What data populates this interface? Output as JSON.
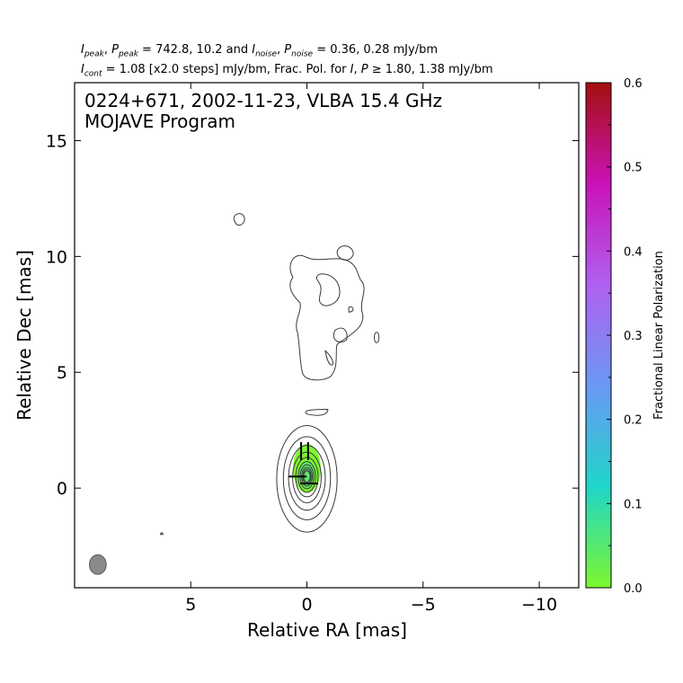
{
  "header": {
    "line1": {
      "i_peak_sym": "I",
      "i_peak_sub": "peak",
      "p_peak_sym": "P",
      "p_peak_sub": "peak",
      "peak_values": " = 742.8, 10.2 and ",
      "i_noise_sym": "I",
      "i_noise_sub": "noise",
      "p_noise_sym": "P",
      "p_noise_sub": "noise",
      "noise_values": " = 0.36, 0.28 mJy/bm"
    },
    "line2": {
      "i_cont_sym": "I",
      "i_cont_sub": "cont",
      "cont_text": " = 1.08 [x2.0 steps] mJy/bm, Frac. Pol. for ",
      "i_sym": "I",
      "p_sym": "P",
      "frac_text": " ≥ 1.80, 1.38 mJy/bm"
    }
  },
  "chart_data": {
    "type": "contour",
    "title_line1": "0224+671, 2002-11-23, VLBA 15.4 GHz",
    "title_line2": "MOJAVE Program",
    "xlabel": "Relative RA [mas]",
    "ylabel": "Relative Dec [mas]",
    "xlim": [
      10,
      -11.7
    ],
    "ylim": [
      -4.3,
      17.5
    ],
    "x_ticks": [
      5,
      0,
      -5,
      -10
    ],
    "x_tick_labels": [
      "5",
      "0",
      "−5",
      "−10"
    ],
    "y_ticks": [
      15,
      10,
      5,
      0
    ],
    "y_tick_labels": [
      "15",
      "10",
      "5",
      "0"
    ],
    "colorbar": {
      "label": "Fractional Linear Polarization",
      "range": [
        0.0,
        0.6
      ],
      "ticks": [
        0.0,
        0.1,
        0.2,
        0.3,
        0.4,
        0.5,
        0.6
      ],
      "tick_labels": [
        "0.0",
        "0.1",
        "0.2",
        "0.3",
        "0.4",
        "0.5",
        "0.6"
      ],
      "colors": [
        "#7df72f",
        "#1fd6c8",
        "#6a98f5",
        "#b060f0",
        "#c912b8",
        "#a4100c"
      ]
    },
    "core": {
      "x": 0.0,
      "y": 0.4,
      "contour_count": 10,
      "outer_half_width": 1.3,
      "outer_half_height": 2.3
    },
    "jet_features": [
      {
        "name": "main-jet-blob",
        "x": -0.5,
        "y": 7.6
      },
      {
        "name": "left-blob",
        "x": 3.0,
        "y": 11.6
      },
      {
        "name": "upper-right-blob",
        "x": -1.7,
        "y": 10.1
      },
      {
        "name": "lower-knot",
        "x": -0.4,
        "y": 3.3
      },
      {
        "name": "right-small-blob",
        "x": -3.0,
        "y": 6.5
      },
      {
        "name": "small-dot",
        "x": 6.3,
        "y": -2.0
      }
    ],
    "polarization": {
      "region_x": [
        0.6,
        -0.6
      ],
      "region_y": [
        -0.2,
        1.9
      ],
      "frac_pol_approx": 0.02,
      "evpa_vectors": [
        {
          "x": 0.25,
          "y": 1.6,
          "angle_deg": 0
        },
        {
          "x": -0.05,
          "y": 1.6,
          "angle_deg": 0
        },
        {
          "x": -0.1,
          "y": 0.2,
          "angle_deg": 90
        },
        {
          "x": 0.4,
          "y": 0.5,
          "angle_deg": 90
        }
      ]
    },
    "beam": {
      "x": 9.0,
      "y": -3.3,
      "major": 0.85,
      "minor": 0.72
    }
  }
}
